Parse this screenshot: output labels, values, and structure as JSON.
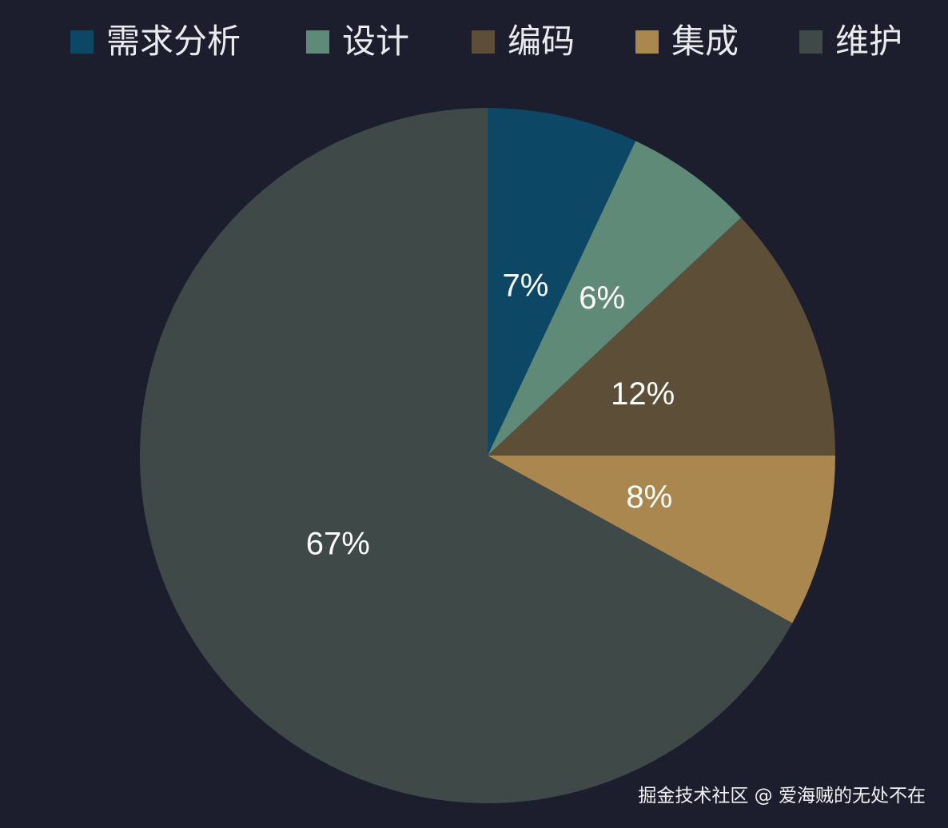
{
  "chart_data": {
    "type": "pie",
    "categories": [
      "需求分析",
      "设计",
      "编码",
      "集成",
      "维护"
    ],
    "values": [
      7,
      6,
      12,
      8,
      67
    ],
    "value_labels": [
      "7%",
      "6%",
      "12%",
      "8%",
      "67%"
    ],
    "colors": [
      "#0d4766",
      "#5e8a77",
      "#5d4f37",
      "#a9874e",
      "#3f4a48"
    ],
    "legend": {
      "position": "top",
      "entries": [
        "需求分析",
        "设计",
        "编码",
        "集成",
        "维护"
      ]
    },
    "start_angle": "12 o'clock",
    "direction": "clockwise"
  },
  "watermark": "掘金技术社区 @ 爱海贼的无处不在"
}
